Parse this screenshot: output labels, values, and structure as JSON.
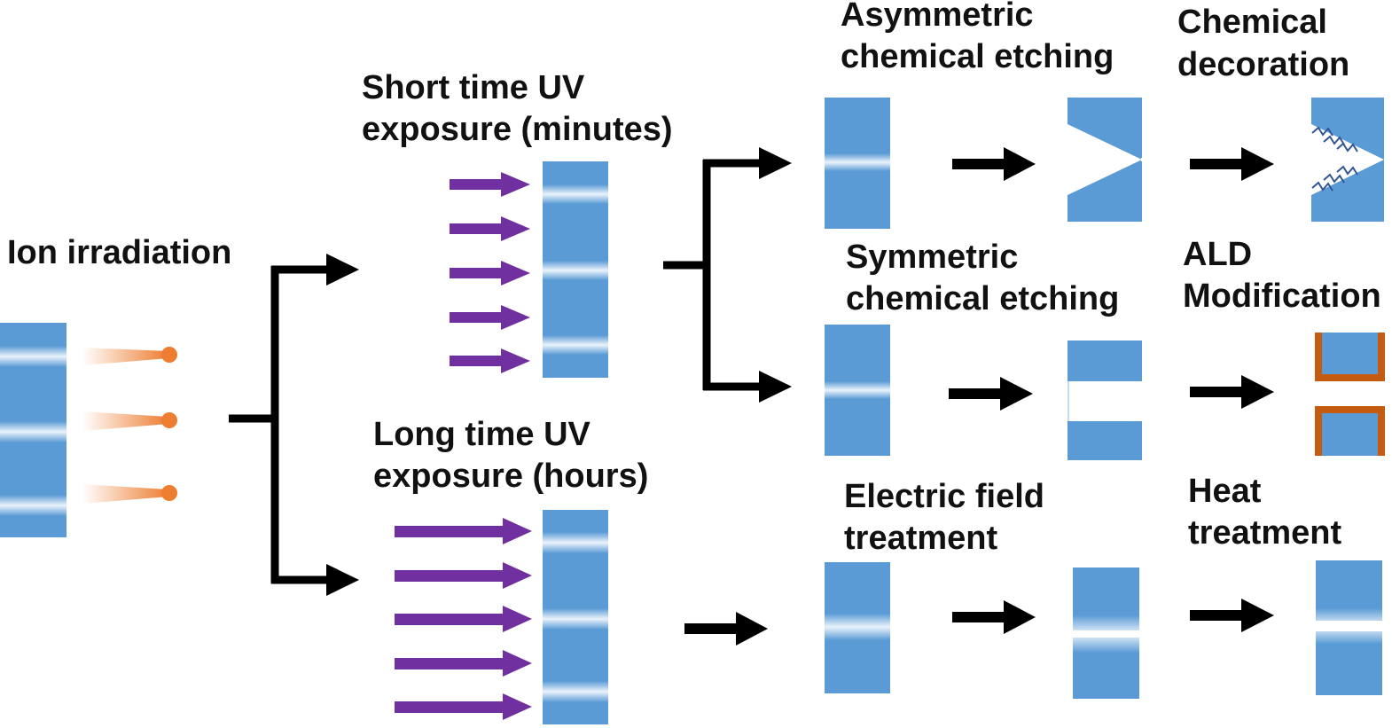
{
  "labels": {
    "ion_irradiation": "Ion irradiation",
    "short_uv_line1": "Short time UV",
    "short_uv_line2": "exposure (minutes)",
    "long_uv_line1": "Long time UV",
    "long_uv_line2": "exposure (hours)",
    "asym_line1": "Asymmetric",
    "asym_line2": "chemical etching",
    "sym_line1": "Symmetric",
    "sym_line2": "chemical etching",
    "electric_line1": "Electric field",
    "electric_line2": "treatment",
    "chem_dec_line1": "Chemical",
    "chem_dec_line2": "decoration",
    "ald_line1": "ALD",
    "ald_line2": "Modification",
    "heat_line1": "Heat",
    "heat_line2": "treatment"
  },
  "colors": {
    "membrane": "#5b9bd5",
    "ion": "#ed7d31",
    "uv_arrow": "#7030a0",
    "ald_coating": "#c55a11",
    "connector": "#000000",
    "decoration": "#2f5597"
  },
  "icons": {
    "flow_arrow": "right-arrow-icon",
    "ion_beam": "ion-beam-icon",
    "uv_arrow": "uv-light-arrow-icon",
    "surface_group": "zigzag-chain-icon"
  }
}
